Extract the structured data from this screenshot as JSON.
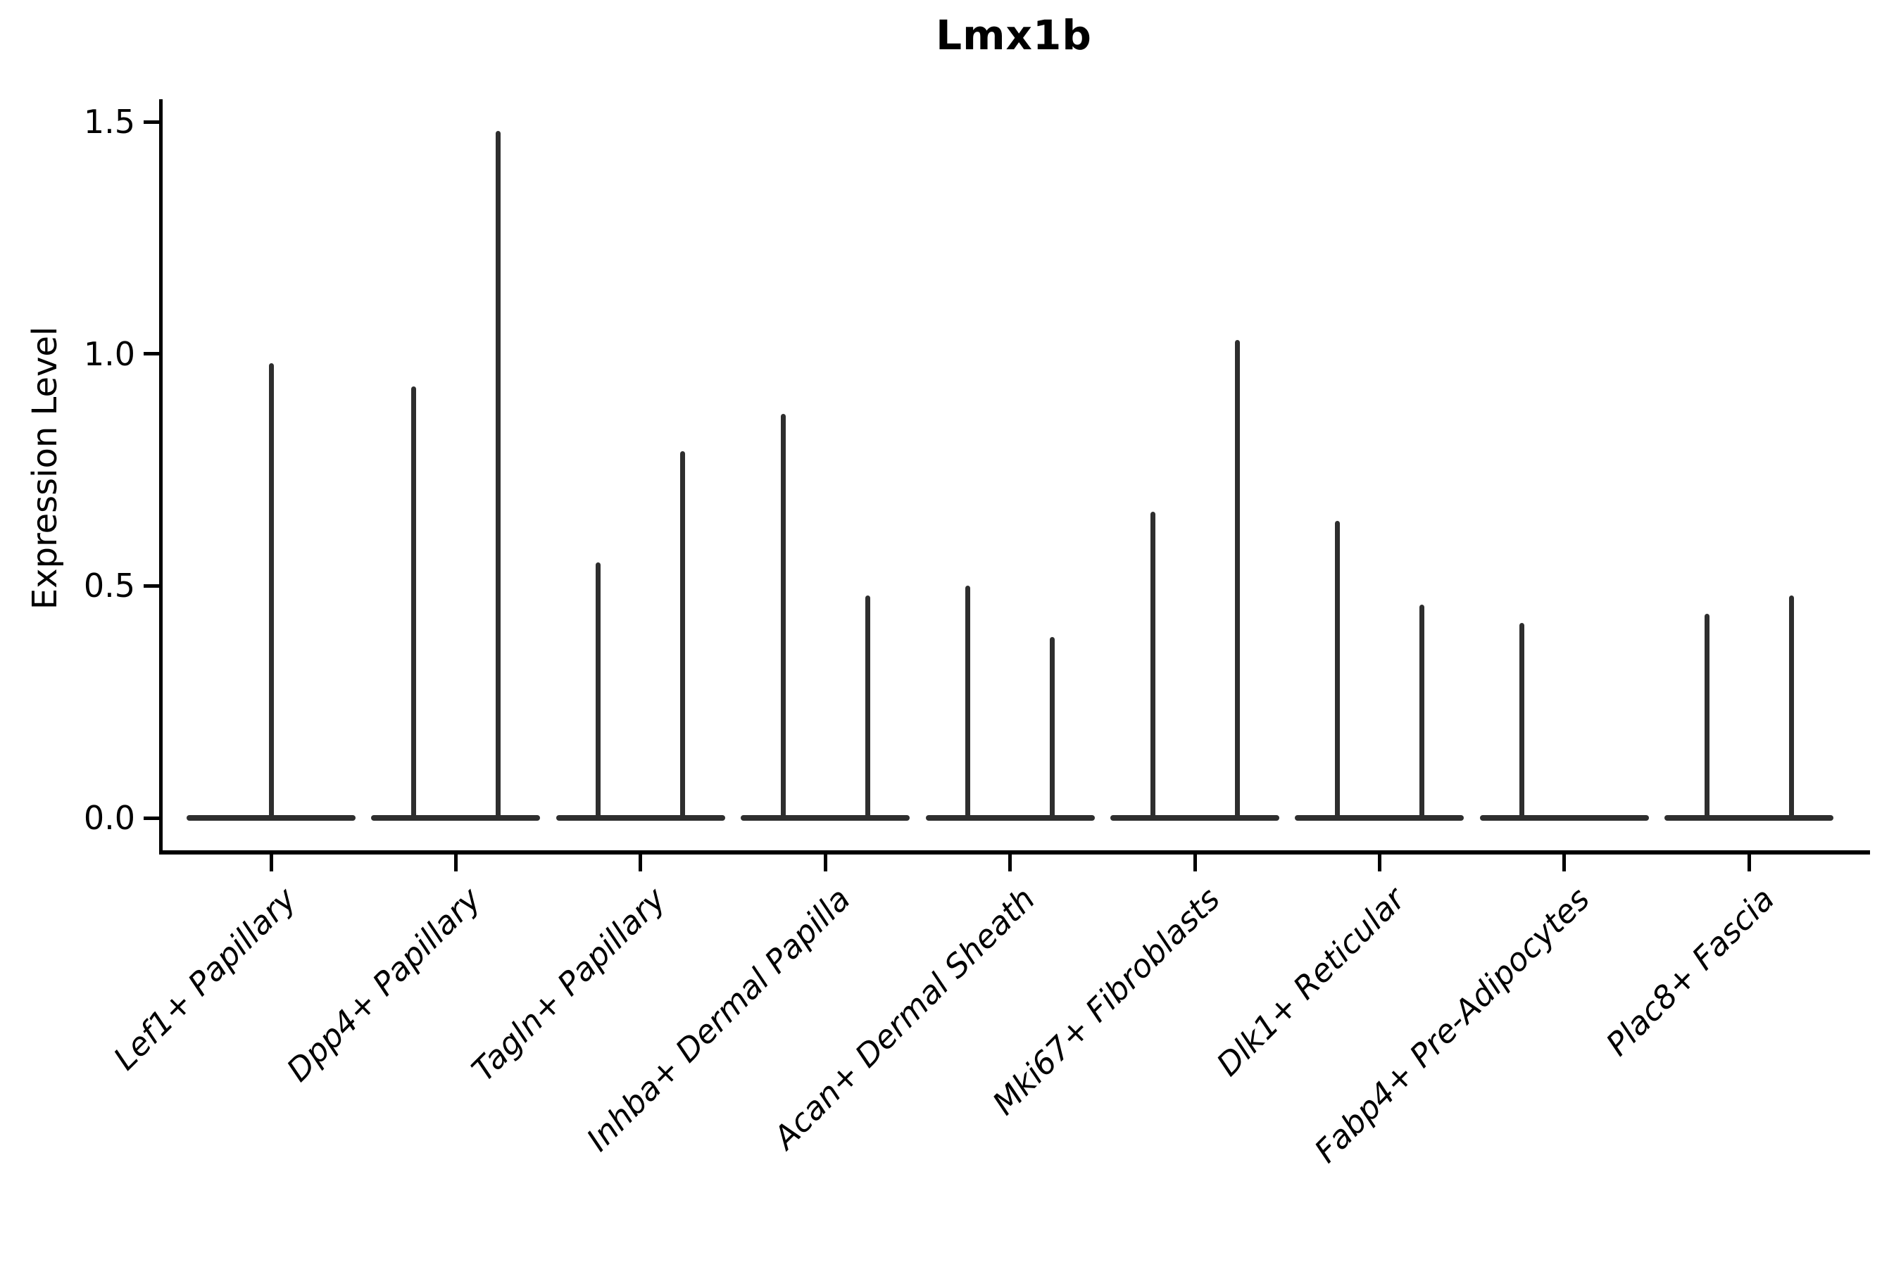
{
  "figure": {
    "title": "Lmx1b",
    "ylabel": "Expression Level"
  },
  "chart_data": {
    "type": "violin",
    "title": "Lmx1b",
    "xlabel": "",
    "ylabel": "Expression Level",
    "ylim": [
      0,
      1.5
    ],
    "y_ticks": [
      "0.0",
      "0.5",
      "1.0",
      "1.5"
    ],
    "grid": false,
    "legend": "none",
    "style": "flat violins collapsed at 0 with a thin vertical spike up to each group's maximum expression; dark gray on white, only left and bottom spines",
    "categories": [
      "Lef1+ Papillary",
      "Dpp4+ Papillary",
      "Tagln+ Papillary",
      "Inhba+ Dermal Papilla",
      "Acan+ Dermal Sheath",
      "Mki67+ Fibroblasts",
      "Dlk1+ Reticular",
      "Fabp4+ Pre-Adipocytes",
      "Plac8+ Fascia"
    ],
    "violins": [
      {
        "category": "Lef1+ Papillary",
        "spikes": [
          {
            "position": "center",
            "max_expression": 0.98
          }
        ]
      },
      {
        "category": "Dpp4+ Papillary",
        "spikes": [
          {
            "position": "left",
            "max_expression": 0.93
          },
          {
            "position": "right",
            "max_expression": 1.48
          }
        ]
      },
      {
        "category": "Tagln+ Papillary",
        "spikes": [
          {
            "position": "left",
            "max_expression": 0.55
          },
          {
            "position": "right",
            "max_expression": 0.79
          }
        ]
      },
      {
        "category": "Inhba+ Dermal Papilla",
        "spikes": [
          {
            "position": "left",
            "max_expression": 0.87
          },
          {
            "position": "right",
            "max_expression": 0.48
          }
        ]
      },
      {
        "category": "Acan+ Dermal Sheath",
        "spikes": [
          {
            "position": "left",
            "max_expression": 0.5
          },
          {
            "position": "right",
            "max_expression": 0.39
          }
        ]
      },
      {
        "category": "Mki67+ Fibroblasts",
        "spikes": [
          {
            "position": "left",
            "max_expression": 0.66
          },
          {
            "position": "right",
            "max_expression": 1.03
          }
        ]
      },
      {
        "category": "Dlk1+ Reticular",
        "spikes": [
          {
            "position": "left",
            "max_expression": 0.64
          },
          {
            "position": "right",
            "max_expression": 0.46
          }
        ]
      },
      {
        "category": "Fabp4+ Pre-Adipocytes",
        "spikes": [
          {
            "position": "left",
            "max_expression": 0.42
          }
        ]
      },
      {
        "category": "Plac8+ Fascia",
        "spikes": [
          {
            "position": "left",
            "max_expression": 0.44
          },
          {
            "position": "right",
            "max_expression": 0.48
          }
        ]
      }
    ],
    "colors": {
      "violin": "#2e2e2e",
      "axis": "#000000",
      "background": "#ffffff"
    }
  }
}
